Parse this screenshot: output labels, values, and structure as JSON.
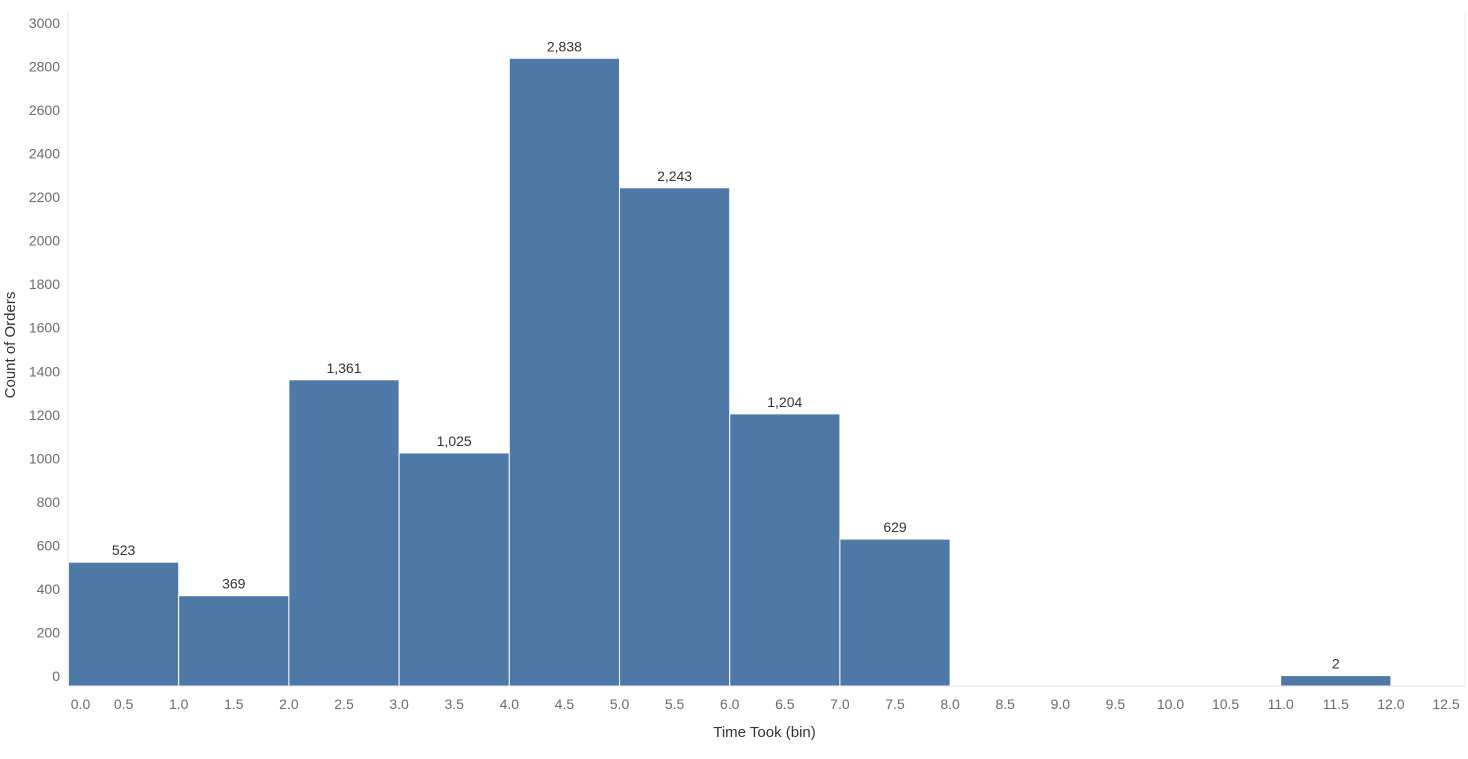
{
  "chart_data": {
    "type": "bar",
    "title": "",
    "xlabel": "Time Took (bin)",
    "ylabel": "Count of Orders",
    "bin_width": 1.0,
    "bins": [
      {
        "start": 0.0,
        "end": 1.0,
        "value": 523,
        "label": "523"
      },
      {
        "start": 1.0,
        "end": 2.0,
        "value": 369,
        "label": "369"
      },
      {
        "start": 2.0,
        "end": 3.0,
        "value": 1361,
        "label": "1,361"
      },
      {
        "start": 3.0,
        "end": 4.0,
        "value": 1025,
        "label": "1,025"
      },
      {
        "start": 4.0,
        "end": 5.0,
        "value": 2838,
        "label": "2,838"
      },
      {
        "start": 5.0,
        "end": 6.0,
        "value": 2243,
        "label": "2,243"
      },
      {
        "start": 6.0,
        "end": 7.0,
        "value": 1204,
        "label": "1,204"
      },
      {
        "start": 7.0,
        "end": 8.0,
        "value": 629,
        "label": "629"
      },
      {
        "start": 11.0,
        "end": 12.0,
        "value": 2,
        "label": "2"
      }
    ],
    "xlim": [
      0.0,
      12.5
    ],
    "ylim": [
      0,
      3000
    ],
    "x_ticks": [
      "0.0",
      "0.5",
      "1.0",
      "1.5",
      "2.0",
      "2.5",
      "3.0",
      "3.5",
      "4.0",
      "4.5",
      "5.0",
      "5.5",
      "6.0",
      "6.5",
      "7.0",
      "7.5",
      "8.0",
      "8.5",
      "9.0",
      "9.5",
      "10.0",
      "10.5",
      "11.0",
      "11.5",
      "12.0",
      "12.5"
    ],
    "y_ticks": [
      "0",
      "200",
      "400",
      "600",
      "800",
      "1000",
      "1200",
      "1400",
      "1600",
      "1800",
      "2000",
      "2200",
      "2400",
      "2600",
      "2800",
      "3000"
    ],
    "bar_color": "#4e79a7",
    "grid": false,
    "legend": "none"
  }
}
